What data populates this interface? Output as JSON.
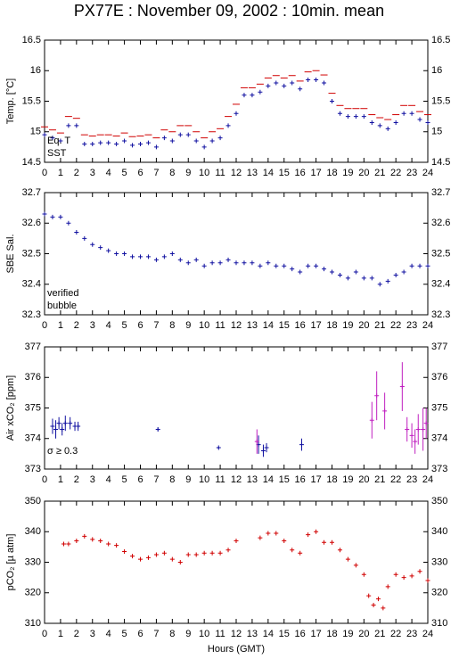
{
  "chart_data": [
    {
      "type": "scatter",
      "title": "PX77E : November 09, 2002 : 10min. mean",
      "ylabel": "Temp. [°C]",
      "xlim": [
        0,
        24
      ],
      "xticks": [
        0,
        1,
        2,
        3,
        4,
        5,
        6,
        7,
        8,
        9,
        10,
        11,
        12,
        13,
        14,
        15,
        16,
        17,
        18,
        19,
        20,
        21,
        22,
        23,
        24
      ],
      "ylim": [
        14.5,
        16.5
      ],
      "yticks": [
        14.5,
        15,
        15.5,
        16,
        16.5
      ],
      "x": [
        0,
        0.5,
        1,
        1.5,
        2,
        2.5,
        3,
        3.5,
        4,
        4.5,
        5,
        5.5,
        6,
        6.5,
        7,
        7.5,
        8,
        8.5,
        9,
        9.5,
        10,
        10.5,
        11,
        11.5,
        12,
        12.5,
        13,
        13.5,
        14,
        14.5,
        15,
        15.5,
        16,
        16.5,
        17,
        17.5,
        18,
        18.5,
        19,
        19.5,
        20,
        20.5,
        21,
        21.5,
        22,
        22.5,
        23,
        23.5,
        24
      ],
      "series": [
        {
          "name": "Eq. T",
          "color": "#d00000",
          "marker": "dash",
          "values": [
            15.08,
            15.03,
            14.98,
            15.25,
            15.22,
            14.95,
            14.93,
            14.95,
            14.95,
            14.93,
            14.98,
            14.92,
            14.93,
            14.95,
            14.9,
            15.03,
            15.0,
            15.1,
            15.1,
            15.0,
            14.9,
            15.0,
            15.05,
            15.25,
            15.45,
            15.72,
            15.72,
            15.78,
            15.88,
            15.92,
            15.88,
            15.92,
            15.83,
            15.98,
            16.0,
            15.93,
            15.63,
            15.43,
            15.38,
            15.38,
            15.38,
            15.28,
            15.23,
            15.2,
            15.28,
            15.43,
            15.43,
            15.33,
            15.28
          ]
        },
        {
          "name": "SST",
          "color": "#1010a0",
          "marker": "plus",
          "values": [
            14.95,
            14.9,
            14.85,
            15.1,
            15.1,
            14.8,
            14.8,
            14.82,
            14.82,
            14.8,
            14.85,
            14.78,
            14.8,
            14.82,
            14.75,
            14.9,
            14.85,
            14.95,
            14.95,
            14.85,
            14.75,
            14.85,
            14.9,
            15.1,
            15.3,
            15.6,
            15.6,
            15.65,
            15.75,
            15.8,
            15.75,
            15.8,
            15.7,
            15.85,
            15.85,
            15.8,
            15.5,
            15.3,
            15.25,
            15.25,
            15.25,
            15.15,
            15.1,
            15.05,
            15.15,
            15.3,
            15.3,
            15.2,
            15.15
          ]
        }
      ]
    },
    {
      "type": "scatter",
      "ylabel": "SBE Sal.",
      "xlim": [
        0,
        24
      ],
      "xticks": [
        0,
        1,
        2,
        3,
        4,
        5,
        6,
        7,
        8,
        9,
        10,
        11,
        12,
        13,
        14,
        15,
        16,
        17,
        18,
        19,
        20,
        21,
        22,
        23,
        24
      ],
      "ylim": [
        32.3,
        32.7
      ],
      "yticks": [
        32.3,
        32.4,
        32.5,
        32.6,
        32.7
      ],
      "x": [
        0,
        0.5,
        1,
        1.5,
        2,
        2.5,
        3,
        3.5,
        4,
        4.5,
        5,
        5.5,
        6,
        6.5,
        7,
        7.5,
        8,
        8.5,
        9,
        9.5,
        10,
        10.5,
        11,
        11.5,
        12,
        12.5,
        13,
        13.5,
        14,
        14.5,
        15,
        15.5,
        16,
        16.5,
        17,
        17.5,
        18,
        18.5,
        19,
        19.5,
        20,
        20.5,
        21,
        21.5,
        22,
        22.5,
        23,
        23.5,
        24
      ],
      "series": [
        {
          "name": "verified",
          "color": "#1010a0",
          "marker": "plus",
          "values": [
            32.63,
            32.62,
            32.62,
            32.6,
            32.57,
            32.55,
            32.53,
            32.52,
            32.51,
            32.5,
            32.5,
            32.49,
            32.49,
            32.49,
            32.48,
            32.49,
            32.5,
            32.48,
            32.47,
            32.48,
            32.46,
            32.47,
            32.47,
            32.48,
            32.47,
            32.47,
            32.47,
            32.46,
            32.47,
            32.46,
            32.46,
            32.45,
            32.44,
            32.46,
            32.46,
            32.45,
            32.44,
            32.43,
            32.42,
            32.44,
            32.42,
            32.42,
            32.4,
            32.41,
            32.43,
            32.44,
            32.46,
            32.46,
            32.46
          ]
        },
        {
          "name": "bubble",
          "color": "#c020c0",
          "marker": "plus",
          "values": []
        }
      ]
    },
    {
      "type": "errorbar",
      "ylabel": "Air xCO₂ [ppm]",
      "annotation": "σ ≥ 0.3",
      "annotation_color": "#c020c0",
      "xlim": [
        0,
        24
      ],
      "xticks": [
        0,
        1,
        2,
        3,
        4,
        5,
        6,
        7,
        8,
        9,
        10,
        11,
        12,
        13,
        14,
        15,
        16,
        17,
        18,
        19,
        20,
        21,
        22,
        23,
        24
      ],
      "ylim": [
        373,
        377
      ],
      "yticks": [
        373,
        374,
        375,
        376,
        377
      ],
      "series": [
        {
          "color": "#1010a0",
          "x": [
            0.5,
            0.7,
            0.9,
            1.1,
            1.3,
            1.6,
            1.9,
            2.1,
            7.1,
            10.9,
            13.4,
            13.7,
            13.9,
            16.1
          ],
          "values": [
            374.4,
            374.3,
            374.5,
            374.3,
            374.5,
            374.5,
            374.4,
            374.4,
            374.3,
            373.7,
            373.8,
            373.6,
            373.7,
            373.8
          ],
          "errors": [
            0.25,
            0.3,
            0.2,
            0.2,
            0.25,
            0.2,
            0.15,
            0.15,
            0.05,
            0.03,
            0.3,
            0.2,
            0.15,
            0.2
          ]
        },
        {
          "color": "#c020c0",
          "x": [
            13.3,
            20.5,
            20.8,
            21.3,
            22.4,
            22.7,
            23.0,
            23.2,
            23.4,
            23.7,
            23.9
          ],
          "values": [
            373.9,
            374.6,
            375.4,
            374.9,
            375.7,
            374.3,
            374.1,
            373.9,
            374.3,
            374.3,
            374.5
          ],
          "errors": [
            0.4,
            0.6,
            0.8,
            0.6,
            0.8,
            0.4,
            0.4,
            0.4,
            0.5,
            0.7,
            0.5
          ]
        }
      ]
    },
    {
      "type": "scatter",
      "ylabel": "pCO₂ [µ atm]",
      "xlabel": "Hours (GMT)",
      "xlim": [
        0,
        24
      ],
      "xticks": [
        0,
        1,
        2,
        3,
        4,
        5,
        6,
        7,
        8,
        9,
        10,
        11,
        12,
        13,
        14,
        15,
        16,
        17,
        18,
        19,
        20,
        21,
        22,
        23,
        24
      ],
      "ylim": [
        310,
        350
      ],
      "yticks": [
        310,
        320,
        330,
        340,
        350
      ],
      "x": [
        1.2,
        1.5,
        2,
        2.5,
        3,
        3.5,
        4,
        4.5,
        5,
        5.5,
        6,
        6.5,
        7,
        7.5,
        8,
        8.5,
        9,
        9.5,
        10,
        10.5,
        11,
        11.5,
        12,
        13.5,
        14,
        14.5,
        15,
        15.5,
        16,
        16.5,
        17,
        17.5,
        18,
        18.5,
        19,
        19.5,
        20,
        20.3,
        20.6,
        20.9,
        21.2,
        21.5,
        22,
        22.5,
        23,
        23.5,
        24
      ],
      "series": [
        {
          "color": "#d00000",
          "marker": "plus",
          "values": [
            336,
            336,
            337,
            338.5,
            337.5,
            337,
            336,
            335.5,
            333.5,
            332,
            331,
            331.5,
            332.5,
            333,
            331,
            330,
            332.5,
            332.5,
            333,
            333,
            333,
            334,
            337,
            338,
            339.5,
            339.5,
            337,
            334,
            333,
            339,
            340,
            336.5,
            336.5,
            334,
            331,
            329,
            326,
            319,
            316,
            318,
            315,
            322,
            326,
            325,
            325.5,
            327,
            324
          ]
        }
      ]
    }
  ]
}
